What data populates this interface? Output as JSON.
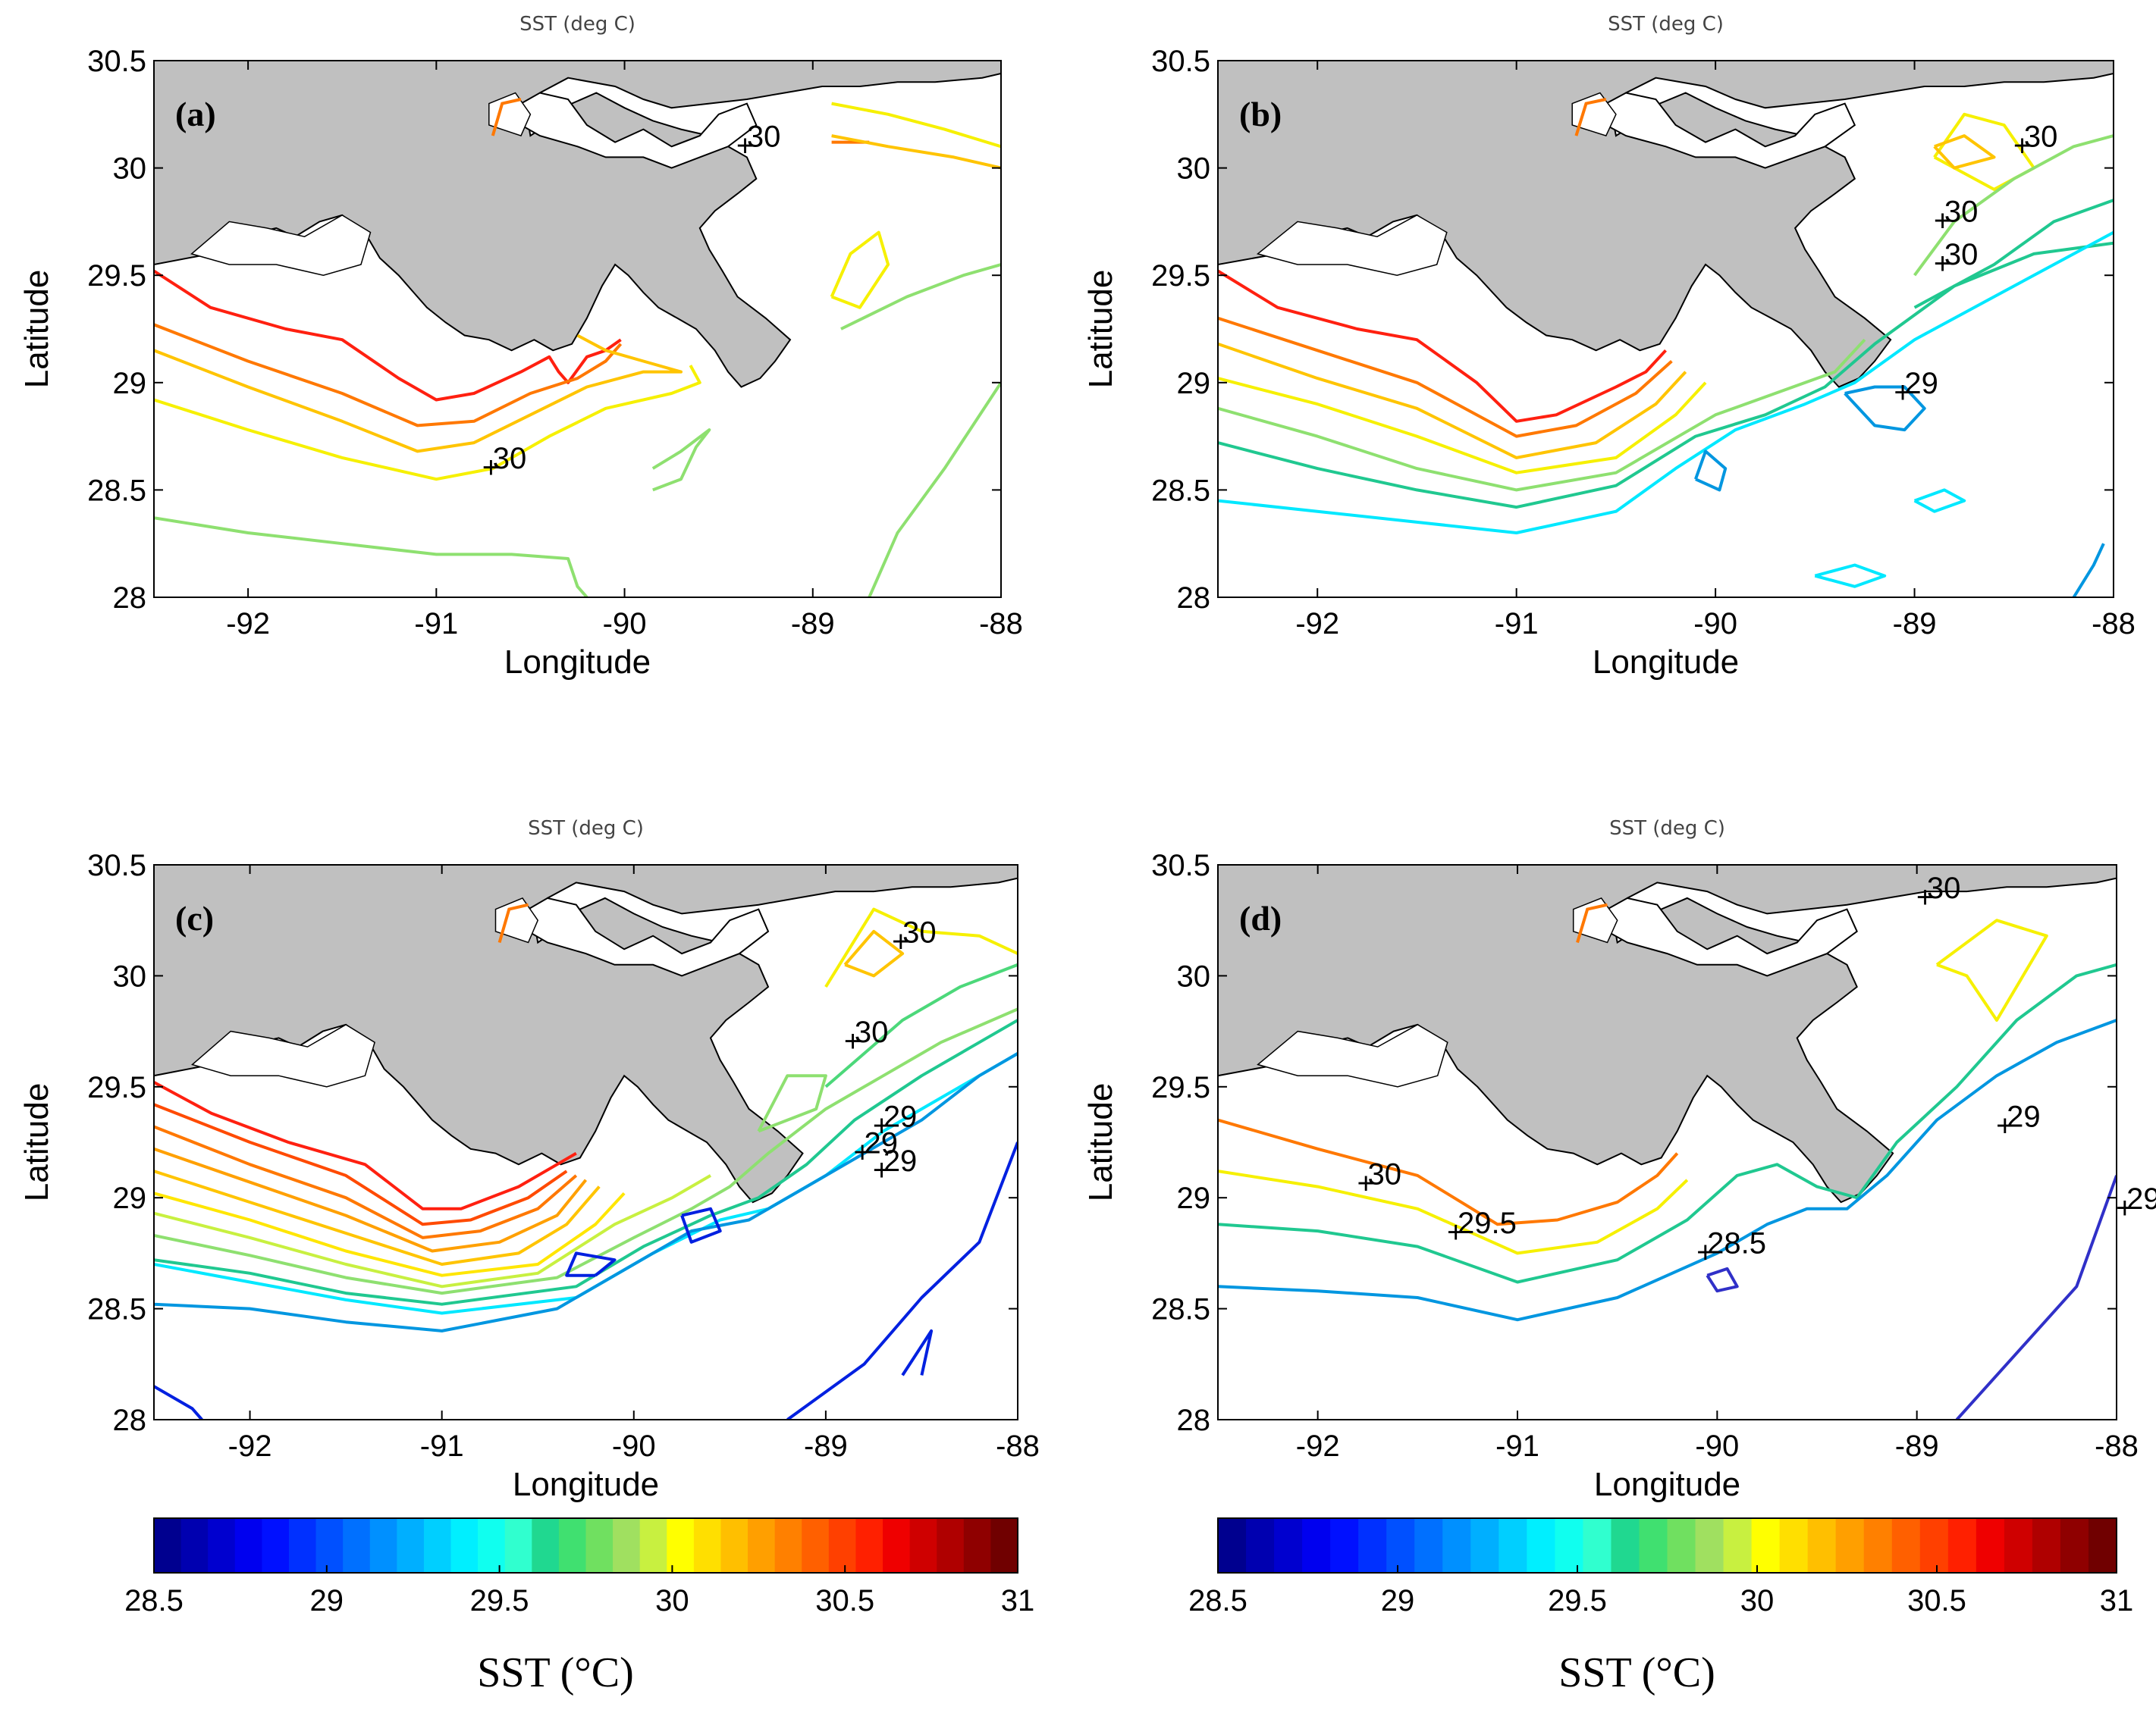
{
  "chart_data": [
    {
      "type": "contour",
      "panel": "(a)",
      "title": "SST (deg C)",
      "xlabel": "Longitude",
      "ylabel": "Latitude",
      "xlim": [
        -92.5,
        -88
      ],
      "ylim": [
        28,
        30.5
      ],
      "xticks": [
        -92,
        -91,
        -90,
        -89,
        -88
      ],
      "yticks": [
        28,
        28.5,
        29,
        29.5,
        30,
        30.5
      ],
      "contour_labels": [
        "30",
        "30"
      ],
      "contour_levels": [
        30.75,
        30.5,
        30.25,
        30.0,
        29.75
      ]
    },
    {
      "type": "contour",
      "panel": "(b)",
      "title": "SST (deg C)",
      "xlabel": "Longitude",
      "ylabel": "Latitude",
      "xlim": [
        -92.5,
        -88
      ],
      "ylim": [
        28,
        30.5
      ],
      "xticks": [
        -92,
        -91,
        -90,
        -89,
        -88
      ],
      "yticks": [
        28,
        28.5,
        29,
        29.5,
        30,
        30.5
      ],
      "contour_labels": [
        "30",
        "30",
        "30",
        "29"
      ],
      "contour_levels": [
        30.75,
        30.5,
        30.25,
        30.0,
        29.75,
        29.5,
        29.25,
        29.0
      ]
    },
    {
      "type": "contour",
      "panel": "(c)",
      "title": "SST (deg C)",
      "xlabel": "Longitude",
      "ylabel": "Latitude",
      "xlim": [
        -92.5,
        -88
      ],
      "ylim": [
        28,
        30.5
      ],
      "xticks": [
        -92,
        -91,
        -90,
        -89,
        -88
      ],
      "yticks": [
        28,
        28.5,
        29,
        29.5,
        30,
        30.5
      ],
      "contour_labels": [
        "30",
        "30",
        "29",
        "29",
        "29"
      ],
      "contour_levels": [
        30.75,
        30.6,
        30.5,
        30.4,
        30.25,
        30.1,
        30.0,
        29.9,
        29.75,
        29.6,
        29.5,
        29.25,
        29.0,
        28.75
      ]
    },
    {
      "type": "contour",
      "panel": "(d)",
      "title": "SST (deg C)",
      "xlabel": "Longitude",
      "ylabel": "Latitude",
      "xlim": [
        -92.5,
        -88
      ],
      "ylim": [
        28,
        30.5
      ],
      "xticks": [
        -92,
        -91,
        -90,
        -89,
        -88
      ],
      "yticks": [
        28,
        28.5,
        29,
        29.5,
        30,
        30.5
      ],
      "contour_labels": [
        "30",
        "30",
        "29.5",
        "28.5",
        "29",
        "29"
      ],
      "contour_levels": [
        30.5,
        30.0,
        29.5,
        29.0,
        28.5
      ]
    }
  ],
  "colorbar": {
    "label": "SST (°C)",
    "range": [
      28.5,
      31
    ],
    "ticks": [
      "28.5",
      "29",
      "29.5",
      "30",
      "30.5",
      "31"
    ],
    "colors": [
      "#00008f",
      "#0000b0",
      "#0000cf",
      "#0000ef",
      "#0010ff",
      "#0030ff",
      "#0050ff",
      "#0070ff",
      "#0090ff",
      "#00afff",
      "#00cfff",
      "#00efff",
      "#10ffef",
      "#30ffcf",
      "#20d890",
      "#40e070",
      "#70e060",
      "#a0e060",
      "#c8f040",
      "#ffff00",
      "#ffdf00",
      "#ffbf00",
      "#ff9f00",
      "#ff8000",
      "#ff6000",
      "#ff4000",
      "#ff2000",
      "#ef0000",
      "#cf0000",
      "#af0000",
      "#8f0000",
      "#700000"
    ]
  },
  "level_colors": {
    "30.75": "#ff2010",
    "30.6": "#ff4a00",
    "30.5": "#ff7800",
    "30.4": "#ffa000",
    "30.25": "#ffc400",
    "30.1": "#ffe600",
    "30.0": "#f6f000",
    "29.9": "#c8f040",
    "29.75": "#8ee070",
    "29.6": "#4cd87a",
    "29.5": "#20c890",
    "29.25": "#00e8ff",
    "29.0": "#0096e0",
    "28.75": "#0020e0",
    "28.5": "#3030c8"
  },
  "land_color": "#c0c0c0"
}
